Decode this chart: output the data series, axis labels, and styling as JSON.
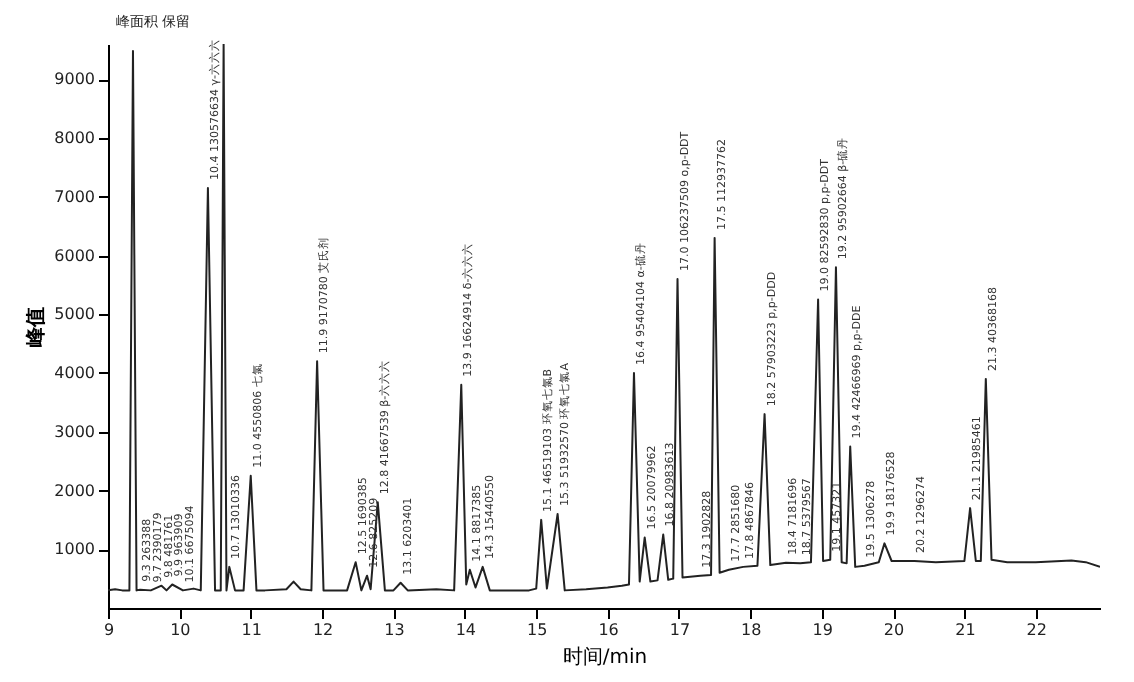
{
  "chart_data": {
    "type": "line",
    "xlabel": "时间/min",
    "ylabel": "峰值",
    "xlim": [
      9,
      22.9
    ],
    "xticks": [
      9,
      10,
      11,
      12,
      13,
      14,
      15,
      16,
      17,
      18,
      19,
      20,
      21,
      22
    ],
    "ylim": [
      0,
      9600
    ],
    "yticks": [
      1000,
      2000,
      3000,
      4000,
      5000,
      6000,
      7000,
      8000,
      9000
    ],
    "grid": false,
    "x": [
      9.0,
      9.1,
      9.2,
      9.3,
      9.35,
      9.4,
      9.45,
      9.6,
      9.75,
      9.82,
      9.9,
      10.05,
      10.2,
      10.3,
      10.4,
      10.5,
      10.58,
      10.62,
      10.66,
      10.7,
      10.78,
      10.9,
      11.0,
      11.08,
      11.2,
      11.5,
      11.6,
      11.7,
      11.85,
      11.93,
      12.02,
      12.35,
      12.47,
      12.55,
      12.63,
      12.68,
      12.78,
      12.88,
      13.0,
      13.1,
      13.2,
      13.6,
      13.85,
      13.95,
      14.02,
      14.07,
      14.15,
      14.25,
      14.35,
      14.9,
      15.0,
      15.07,
      15.15,
      15.3,
      15.4,
      15.7,
      16.0,
      16.2,
      16.3,
      16.37,
      16.45,
      16.52,
      16.6,
      16.7,
      16.78,
      16.85,
      16.92,
      16.98,
      17.05,
      17.3,
      17.45,
      17.5,
      17.57,
      17.7,
      17.9,
      18.1,
      18.2,
      18.28,
      18.5,
      18.7,
      18.85,
      18.95,
      19.02,
      19.12,
      19.2,
      19.28,
      19.35,
      19.4,
      19.47,
      19.6,
      19.8,
      19.88,
      19.98,
      20.3,
      20.6,
      21.0,
      21.08,
      21.16,
      21.23,
      21.3,
      21.38,
      21.6,
      22.0,
      22.5,
      22.7,
      22.9
    ],
    "series": [
      {
        "color": "#222222",
        "values": [
          300,
          320,
          300,
          300,
          9480,
          300,
          310,
          300,
          380,
          300,
          400,
          300,
          330,
          300,
          7150,
          300,
          300,
          9600,
          300,
          700,
          300,
          300,
          2250,
          300,
          300,
          320,
          450,
          320,
          300,
          4200,
          300,
          300,
          780,
          300,
          550,
          320,
          1800,
          300,
          300,
          430,
          300,
          320,
          300,
          3800,
          400,
          650,
          350,
          700,
          300,
          300,
          330,
          1500,
          330,
          1600,
          300,
          320,
          350,
          380,
          400,
          4000,
          450,
          1200,
          450,
          470,
          1250,
          480,
          500,
          5600,
          520,
          550,
          560,
          6300,
          600,
          650,
          700,
          720,
          3300,
          730,
          770,
          760,
          780,
          5250,
          800,
          820,
          5800,
          780,
          760,
          2750,
          700,
          720,
          780,
          1100,
          800,
          800,
          780,
          800,
          1700,
          800,
          800,
          3900,
          820,
          780,
          780,
          810,
          780,
          700
        ]
      }
    ],
    "marker": "none",
    "line_style": "solid",
    "annotations": [
      "峰面积 保留",
      {
        "text": "9.3 263388",
        "x": 9.45,
        "y": 310
      },
      {
        "text": "9.7 2390179",
        "x": 9.6,
        "y": 300
      },
      {
        "text": "9.8 481761",
        "x": 9.75,
        "y": 380
      },
      {
        "text": "9.9 963909",
        "x": 9.9,
        "y": 400
      },
      {
        "text": "10.1 6675094",
        "x": 10.05,
        "y": 300
      },
      {
        "text": "10.4 130576634  γ-六六六",
        "x": 10.4,
        "y": 7150
      },
      {
        "text": "10.7 13010336",
        "x": 10.7,
        "y": 700
      },
      {
        "text": "11.0 4550806  七氯",
        "x": 11.0,
        "y": 2250
      },
      {
        "text": "11.9 9170780  艾氏剂",
        "x": 11.93,
        "y": 4200
      },
      {
        "text": "12.5 1690385",
        "x": 12.47,
        "y": 780
      },
      {
        "text": "12.6 825209",
        "x": 12.63,
        "y": 550
      },
      {
        "text": "12.8 41667539  β-六六六",
        "x": 12.78,
        "y": 1800
      },
      {
        "text": "13.1 6203401",
        "x": 13.1,
        "y": 430
      },
      {
        "text": "13.9 16624914  δ-六六六",
        "x": 13.95,
        "y": 3800
      },
      {
        "text": "14.1 8817385",
        "x": 14.07,
        "y": 650
      },
      {
        "text": "14.3 15440550",
        "x": 14.25,
        "y": 700
      },
      {
        "text": "15.1 46519103  环氧七氯B",
        "x": 15.07,
        "y": 1500
      },
      {
        "text": "15.3 51932570  环氧七氯A",
        "x": 15.3,
        "y": 1600
      },
      {
        "text": "16.4 95404104  α-硫丹",
        "x": 16.37,
        "y": 4000
      },
      {
        "text": "16.5 20079962",
        "x": 16.52,
        "y": 1200
      },
      {
        "text": "16.8 20983613",
        "x": 16.78,
        "y": 1250
      },
      {
        "text": "17.0 106237509  o,p-DDT",
        "x": 16.98,
        "y": 5600
      },
      {
        "text": "17.3 1902828",
        "x": 17.3,
        "y": 550
      },
      {
        "text": "17.5 112937762",
        "x": 17.5,
        "y": 6300
      },
      {
        "text": "17.7 2851680",
        "x": 17.7,
        "y": 650
      },
      {
        "text": "17.8 4867846",
        "x": 17.9,
        "y": 700
      },
      {
        "text": "18.2 57903223  p,p-DDD",
        "x": 18.2,
        "y": 3300
      },
      {
        "text": "18.4 7181696",
        "x": 18.5,
        "y": 770
      },
      {
        "text": "18.7 5379567",
        "x": 18.7,
        "y": 760
      },
      {
        "text": "19.0 82592830  p,p-DDT",
        "x": 18.95,
        "y": 5250
      },
      {
        "text": "19.1 457321",
        "x": 19.12,
        "y": 820
      },
      {
        "text": "19.2 95902664  β-硫丹",
        "x": 19.2,
        "y": 5800
      },
      {
        "text": "19.4 42466969  p,p-DDE",
        "x": 19.4,
        "y": 2750
      },
      {
        "text": "19.5 1306278",
        "x": 19.6,
        "y": 720
      },
      {
        "text": "19.9 18176528",
        "x": 19.88,
        "y": 1100
      },
      {
        "text": "20.2 1296274",
        "x": 20.3,
        "y": 800
      },
      {
        "text": "21.1 21985461",
        "x": 21.08,
        "y": 1700
      },
      {
        "text": "21.3 40368168",
        "x": 21.3,
        "y": 3900
      }
    ]
  }
}
